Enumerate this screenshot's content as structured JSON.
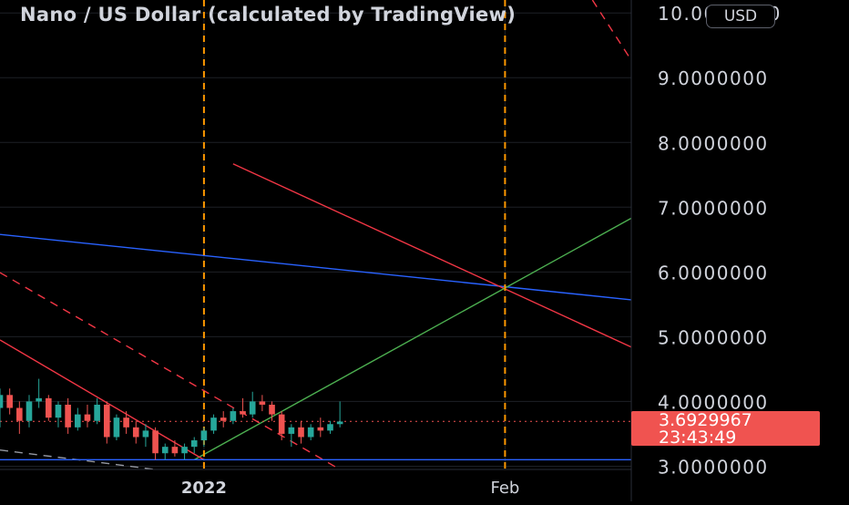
{
  "header": {
    "title": "Nano / US Dollar (calculated by TradingView)",
    "currency_label": "USD"
  },
  "price_tag": {
    "price": "3.6929967",
    "countdown": "23:43:49"
  },
  "colors": {
    "background": "#000000",
    "grid": "#1e2126",
    "axis_text": "#d1d4dc",
    "candle_up": "#26a69a",
    "candle_down": "#ef5350",
    "blue_line": "#2962ff",
    "red_line": "#f23645",
    "green_line": "#4caf50",
    "orange_vertical": "#ff9800",
    "price_tag": "#f05350"
  },
  "chart_data": {
    "type": "candlestick",
    "title": "Nano / US Dollar (calculated by TradingView)",
    "currency": "USD",
    "y_axis": {
      "range": [
        2.95,
        10.2
      ],
      "tick_labels": [
        "3.0000000",
        "4.0000000",
        "5.0000000",
        "6.0000000",
        "7.0000000",
        "8.0000000",
        "9.0000000",
        "10.0000000"
      ],
      "tick_values": [
        3,
        4,
        5,
        6,
        7,
        8,
        9,
        10
      ]
    },
    "x_axis": {
      "range": [
        "2021-12-11",
        "2022-02-14"
      ],
      "tick_labels": [
        "2022",
        "Feb"
      ],
      "tick_dates": [
        "2022-01-01",
        "2022-02-01"
      ]
    },
    "last_price": 3.6929967,
    "candles": [
      {
        "date": "2021-12-11",
        "open": 3.9,
        "high": 4.2,
        "low": 3.6,
        "close": 4.1
      },
      {
        "date": "2021-12-12",
        "open": 4.1,
        "high": 4.2,
        "low": 3.8,
        "close": 3.9
      },
      {
        "date": "2021-12-13",
        "open": 3.9,
        "high": 4.0,
        "low": 3.5,
        "close": 3.7
      },
      {
        "date": "2021-12-14",
        "open": 3.7,
        "high": 4.1,
        "low": 3.6,
        "close": 4.0
      },
      {
        "date": "2021-12-15",
        "open": 4.0,
        "high": 4.35,
        "low": 3.9,
        "close": 4.05
      },
      {
        "date": "2021-12-16",
        "open": 4.05,
        "high": 4.1,
        "low": 3.7,
        "close": 3.75
      },
      {
        "date": "2021-12-17",
        "open": 3.75,
        "high": 4.0,
        "low": 3.6,
        "close": 3.95
      },
      {
        "date": "2021-12-18",
        "open": 3.95,
        "high": 4.05,
        "low": 3.5,
        "close": 3.6
      },
      {
        "date": "2021-12-19",
        "open": 3.6,
        "high": 3.9,
        "low": 3.55,
        "close": 3.8
      },
      {
        "date": "2021-12-20",
        "open": 3.8,
        "high": 3.95,
        "low": 3.6,
        "close": 3.7
      },
      {
        "date": "2021-12-21",
        "open": 3.7,
        "high": 4.05,
        "low": 3.65,
        "close": 3.95
      },
      {
        "date": "2021-12-22",
        "open": 3.95,
        "high": 4.0,
        "low": 3.35,
        "close": 3.45
      },
      {
        "date": "2021-12-23",
        "open": 3.45,
        "high": 3.8,
        "low": 3.4,
        "close": 3.75
      },
      {
        "date": "2021-12-24",
        "open": 3.75,
        "high": 3.85,
        "low": 3.5,
        "close": 3.6
      },
      {
        "date": "2021-12-25",
        "open": 3.6,
        "high": 3.7,
        "low": 3.35,
        "close": 3.45
      },
      {
        "date": "2021-12-26",
        "open": 3.45,
        "high": 3.65,
        "low": 3.3,
        "close": 3.55
      },
      {
        "date": "2021-12-27",
        "open": 3.55,
        "high": 3.6,
        "low": 3.1,
        "close": 3.2
      },
      {
        "date": "2021-12-28",
        "open": 3.2,
        "high": 3.35,
        "low": 3.1,
        "close": 3.3
      },
      {
        "date": "2021-12-29",
        "open": 3.3,
        "high": 3.4,
        "low": 3.15,
        "close": 3.2
      },
      {
        "date": "2021-12-30",
        "open": 3.2,
        "high": 3.35,
        "low": 3.1,
        "close": 3.3
      },
      {
        "date": "2021-12-31",
        "open": 3.3,
        "high": 3.45,
        "low": 3.2,
        "close": 3.4
      },
      {
        "date": "2022-01-01",
        "open": 3.4,
        "high": 3.6,
        "low": 3.3,
        "close": 3.55
      },
      {
        "date": "2022-01-02",
        "open": 3.55,
        "high": 3.8,
        "low": 3.5,
        "close": 3.75
      },
      {
        "date": "2022-01-03",
        "open": 3.75,
        "high": 3.85,
        "low": 3.6,
        "close": 3.7
      },
      {
        "date": "2022-01-04",
        "open": 3.7,
        "high": 3.9,
        "low": 3.65,
        "close": 3.85
      },
      {
        "date": "2022-01-05",
        "open": 3.85,
        "high": 4.05,
        "low": 3.75,
        "close": 3.8
      },
      {
        "date": "2022-01-06",
        "open": 3.8,
        "high": 4.15,
        "low": 3.75,
        "close": 4.0
      },
      {
        "date": "2022-01-07",
        "open": 4.0,
        "high": 4.1,
        "low": 3.85,
        "close": 3.95
      },
      {
        "date": "2022-01-08",
        "open": 3.95,
        "high": 4.0,
        "low": 3.7,
        "close": 3.8
      },
      {
        "date": "2022-01-09",
        "open": 3.8,
        "high": 3.85,
        "low": 3.4,
        "close": 3.5
      },
      {
        "date": "2022-01-10",
        "open": 3.5,
        "high": 3.65,
        "low": 3.3,
        "close": 3.6
      },
      {
        "date": "2022-01-11",
        "open": 3.6,
        "high": 3.7,
        "low": 3.35,
        "close": 3.45
      },
      {
        "date": "2022-01-12",
        "open": 3.45,
        "high": 3.65,
        "low": 3.4,
        "close": 3.6
      },
      {
        "date": "2022-01-13",
        "open": 3.6,
        "high": 3.75,
        "low": 3.45,
        "close": 3.55
      },
      {
        "date": "2022-01-14",
        "open": 3.55,
        "high": 3.7,
        "low": 3.5,
        "close": 3.65
      },
      {
        "date": "2022-01-15",
        "open": 3.65,
        "high": 4.0,
        "low": 3.6,
        "close": 3.69
      }
    ],
    "drawings": {
      "horizontal_blue": {
        "price": 3.1,
        "color": "#2962ff"
      },
      "descending_blue": {
        "start": [
          "2021-12-11",
          6.58
        ],
        "end": [
          "2022-02-14",
          5.57
        ],
        "color": "#2962ff"
      },
      "descending_red": {
        "start": [
          "2022-01-04",
          7.67
        ],
        "end": [
          "2022-02-14",
          4.84
        ],
        "color": "#f23645"
      },
      "ascending_green": {
        "start": [
          "2021-12-31",
          3.1
        ],
        "end": [
          "2022-02-14",
          6.83
        ],
        "color": "#4caf50"
      },
      "channel_red_lower": {
        "start": [
          "2021-12-11",
          4.95
        ],
        "end": [
          "2022-01-01",
          3.1
        ],
        "color": "#f23645"
      },
      "channel_red_upper_dashed": {
        "start": [
          "2021-12-11",
          5.99
        ],
        "end": [
          "2022-01-15",
          2.95
        ],
        "color": "#f23645"
      },
      "top_right_dashed": {
        "start": [
          "2022-02-10",
          10.2
        ],
        "end": [
          "2022-02-14",
          9.27
        ],
        "color": "#f23645"
      },
      "lower_left_dashed_gray": {
        "start": [
          "2021-12-11",
          3.25
        ],
        "end": [
          "2021-12-27",
          2.95
        ],
        "color": "#9598a1"
      },
      "vertical_orange_dashed": [
        "2022-01-01",
        "2022-02-01"
      ],
      "last_price_dotted": {
        "price": 3.6929967,
        "color": "#f05350"
      }
    }
  }
}
